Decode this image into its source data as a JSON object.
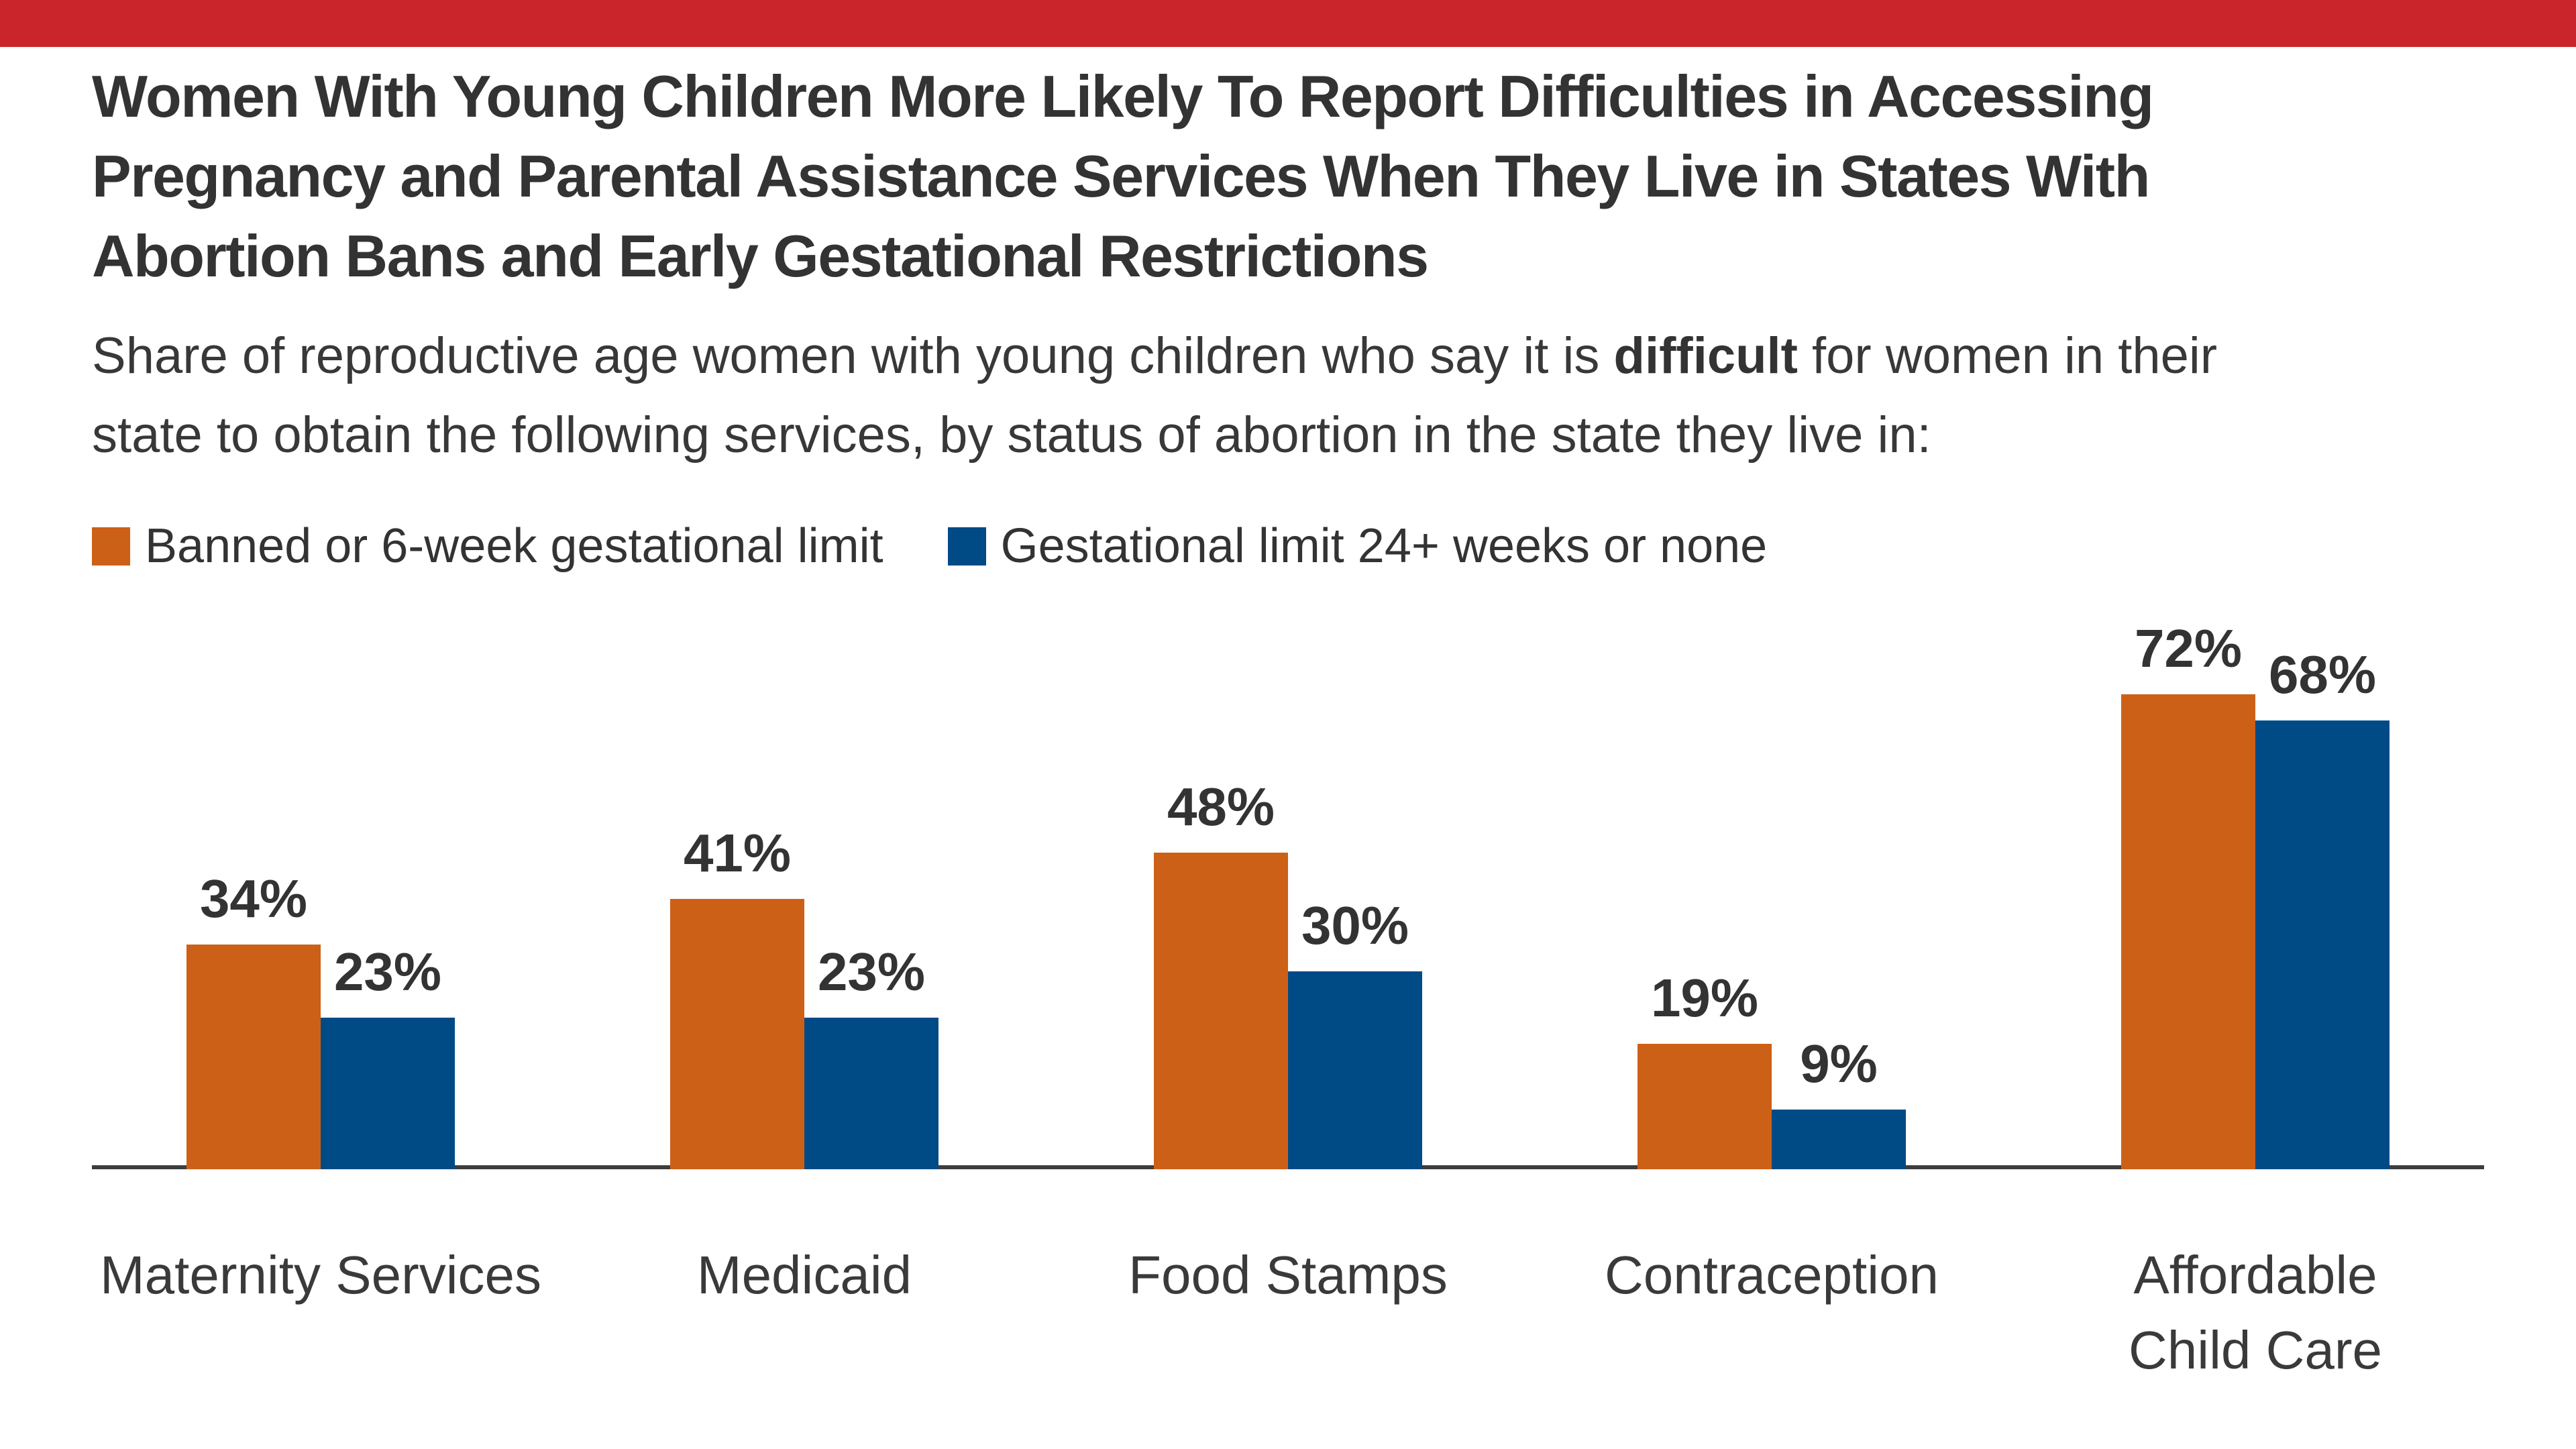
{
  "brand_bar": {
    "color": "#c9252b"
  },
  "header": {
    "title_lines": [
      "Women With Young Children More Likely To Report Difficulties in Accessing",
      "Pregnancy and Parental Assistance Services When They Live in States With",
      "Abortion Bans and Early Gestational Restrictions"
    ],
    "subtitle": {
      "line1_pre": "Share of reproductive age women with young children who say it is ",
      "line1_bold": "difficult",
      "line1_post": " for women in their",
      "line2": "state to obtain the following services, by status of abortion in the state they live in:"
    }
  },
  "legend": [
    {
      "label": "Banned or 6-week gestational limit",
      "color": "#cd6017"
    },
    {
      "label": "Gestational limit 24+ weeks or none",
      "color": "#004a86"
    }
  ],
  "chart_data": {
    "type": "bar",
    "title": "Women With Young Children More Likely To Report Difficulties in Accessing Pregnancy and Parental Assistance Services When They Live in States With Abortion Bans and Early Gestational Restrictions",
    "categories": [
      "Maternity Services",
      "Medicaid",
      "Food Stamps",
      "Contraception",
      "Affordable Child Care"
    ],
    "categories_wrapped": [
      [
        "Maternity Services"
      ],
      [
        "Medicaid"
      ],
      [
        "Food Stamps"
      ],
      [
        "Contraception"
      ],
      [
        "Affordable",
        "Child Care"
      ]
    ],
    "series": [
      {
        "name": "Banned or 6-week gestational limit",
        "color": "#cd6017",
        "values": [
          34,
          41,
          48,
          19,
          72
        ]
      },
      {
        "name": "Gestational limit 24+ weeks or none",
        "color": "#004a86",
        "values": [
          23,
          23,
          30,
          9,
          68
        ]
      }
    ],
    "unit": "%",
    "value_labels": true,
    "xlabel": "",
    "ylabel": "",
    "ylim": [
      0,
      80
    ],
    "grid": false,
    "y_axis_shown": false,
    "legend_position": "top-left",
    "axis_line_color": "#3d3d3d"
  }
}
